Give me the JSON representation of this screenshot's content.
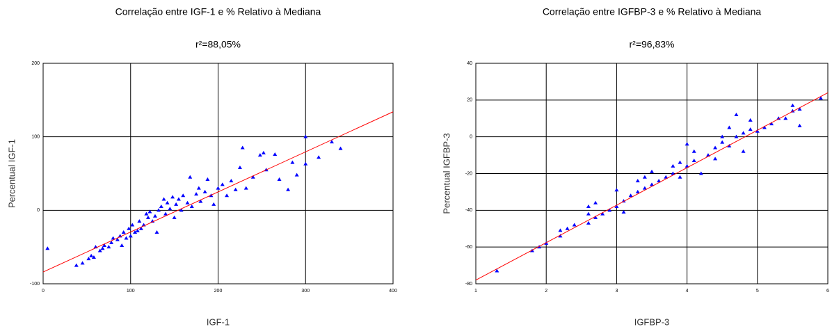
{
  "chart_data": [
    {
      "type": "scatter",
      "title": "Correlação entre IGF-1 e % Relativo à Mediana",
      "subtitle": "r²=88,05%",
      "x_label": "IGF-1",
      "y_label": "Percentual IGF-1",
      "xlim": [
        0,
        400
      ],
      "ylim": [
        -100,
        200
      ],
      "xticks": [
        0,
        100,
        200,
        300,
        400
      ],
      "yticks": [
        -100,
        0,
        100,
        200
      ],
      "grid": true,
      "series": [
        {
          "color": "#0000ff",
          "x": [
            5,
            38,
            45,
            52,
            55,
            58,
            60,
            65,
            68,
            70,
            75,
            78,
            80,
            85,
            88,
            90,
            92,
            95,
            98,
            100,
            102,
            105,
            108,
            110,
            112,
            115,
            118,
            120,
            122,
            125,
            128,
            130,
            132,
            135,
            138,
            140,
            142,
            145,
            148,
            150,
            152,
            155,
            158,
            160,
            165,
            168,
            170,
            175,
            178,
            180,
            185,
            188,
            192,
            195,
            200,
            205,
            210,
            215,
            220,
            225,
            228,
            232,
            240,
            248,
            252,
            255,
            265,
            270,
            280,
            285,
            290,
            300,
            300,
            315,
            330,
            340
          ],
          "values": [
            -52,
            -75,
            -72,
            -66,
            -62,
            -64,
            -50,
            -55,
            -52,
            -48,
            -50,
            -44,
            -38,
            -40,
            -35,
            -48,
            -30,
            -38,
            -25,
            -35,
            -20,
            -30,
            -28,
            -15,
            -25,
            -20,
            -5,
            -10,
            -2,
            -15,
            -8,
            -30,
            0,
            5,
            15,
            -5,
            10,
            2,
            18,
            -10,
            8,
            15,
            0,
            20,
            10,
            45,
            5,
            22,
            30,
            12,
            25,
            42,
            20,
            8,
            30,
            35,
            20,
            40,
            28,
            58,
            85,
            30,
            45,
            75,
            78,
            55,
            76,
            42,
            28,
            65,
            48,
            100,
            63,
            72,
            93,
            84
          ]
        }
      ],
      "trendline": {
        "color": "#ff0000",
        "x": [
          0,
          400
        ],
        "y": [
          -84,
          134
        ]
      }
    },
    {
      "type": "scatter",
      "title": "Correlação entre IGFBP-3 e % Relativo à Mediana",
      "subtitle": "r²=96,83%",
      "x_label": "IGFBP-3",
      "y_label": "Percentual IGFBP-3",
      "xlim": [
        1,
        6
      ],
      "ylim": [
        -80,
        40
      ],
      "xticks": [
        1,
        2,
        3,
        4,
        5,
        6
      ],
      "yticks": [
        -80,
        -60,
        -40,
        -20,
        0,
        20,
        40
      ],
      "grid": true,
      "series": [
        {
          "color": "#0000ff",
          "x": [
            1.3,
            1.8,
            1.9,
            2.0,
            2.2,
            2.2,
            2.3,
            2.4,
            2.6,
            2.6,
            2.6,
            2.7,
            2.7,
            2.8,
            2.9,
            3.0,
            3.0,
            3.1,
            3.1,
            3.2,
            3.3,
            3.3,
            3.4,
            3.4,
            3.5,
            3.5,
            3.6,
            3.7,
            3.8,
            3.8,
            3.9,
            3.9,
            4.0,
            4.0,
            4.1,
            4.1,
            4.2,
            4.3,
            4.4,
            4.4,
            4.5,
            4.5,
            4.6,
            4.6,
            4.7,
            4.7,
            4.8,
            4.8,
            4.9,
            4.9,
            5.0,
            5.1,
            5.2,
            5.3,
            5.4,
            5.5,
            5.5,
            5.6,
            5.6,
            5.9
          ],
          "values": [
            -73,
            -62,
            -60,
            -58,
            -54,
            -51,
            -50,
            -48,
            -47,
            -42,
            -38,
            -44,
            -36,
            -42,
            -40,
            -38,
            -29,
            -35,
            -41,
            -32,
            -30,
            -24,
            -28,
            -22,
            -26,
            -19,
            -24,
            -22,
            -20,
            -16,
            -22,
            -14,
            -4,
            -16,
            -13,
            -8,
            -20,
            -10,
            -6,
            -12,
            -3,
            0,
            -5,
            5,
            12,
            0,
            -8,
            2,
            4,
            9,
            3,
            5,
            7,
            10,
            10,
            17,
            14,
            6,
            15,
            21
          ]
        }
      ],
      "trendline": {
        "color": "#ff0000",
        "x": [
          1,
          6
        ],
        "y": [
          -78,
          24
        ]
      }
    }
  ]
}
